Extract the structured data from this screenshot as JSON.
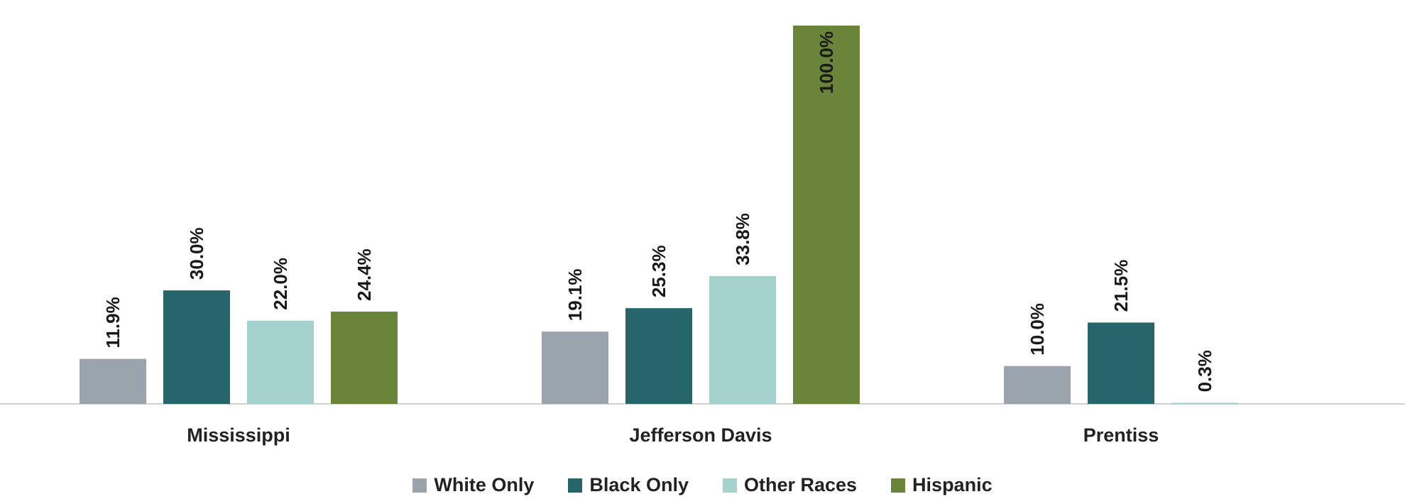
{
  "chart_data": {
    "type": "bar",
    "categories": [
      "Mississippi",
      "Jefferson Davis",
      "Prentiss"
    ],
    "series": [
      {
        "name": "White Only",
        "color": "#9aa4ac",
        "values": [
          11.9,
          19.1,
          10.0
        ],
        "labels": [
          "11.9%",
          "19.1%",
          "10.0%"
        ]
      },
      {
        "name": "Black Only",
        "color": "#26666b",
        "values": [
          30.0,
          25.3,
          21.5
        ],
        "labels": [
          "30.0%",
          "25.3%",
          "21.5%"
        ]
      },
      {
        "name": "Other Races",
        "color": "#a3d3cc",
        "values": [
          22.0,
          33.8,
          0.3
        ],
        "labels": [
          "22.0%",
          "33.8%",
          "0.3%"
        ]
      },
      {
        "name": "Hispanic",
        "color": "#6a843a",
        "values": [
          24.4,
          100.0,
          null
        ],
        "labels": [
          "24.4%",
          "100.0%",
          ""
        ]
      }
    ],
    "ylim": [
      0,
      100
    ],
    "grid": false,
    "legend_position": "bottom",
    "data_labels": "rotated-vertical"
  }
}
